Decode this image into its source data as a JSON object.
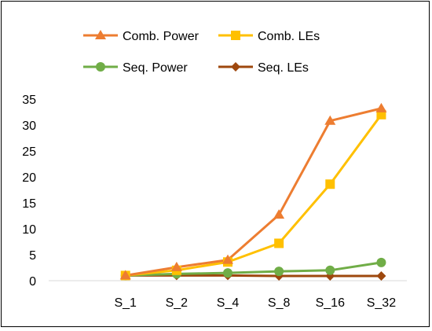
{
  "chart_data": {
    "type": "line",
    "categories": [
      "S_1",
      "S_2",
      "S_4",
      "S_8",
      "S_16",
      "S_32"
    ],
    "series": [
      {
        "name": "Comb. Power",
        "color": "#ED7D31",
        "marker": "triangle",
        "values": [
          1,
          2.6,
          4,
          12.7,
          30.8,
          33.2
        ]
      },
      {
        "name": "Comb. LEs",
        "color": "#FFC000",
        "marker": "square",
        "values": [
          1,
          2,
          3.6,
          7.2,
          18.6,
          32
        ]
      },
      {
        "name": "Seq. Power",
        "color": "#70AD47",
        "marker": "circle",
        "values": [
          1,
          1.3,
          1.5,
          1.8,
          2,
          3.5
        ]
      },
      {
        "name": "Seq. LEs",
        "color": "#9E480E",
        "marker": "diamond",
        "values": [
          1,
          1,
          1,
          0.9,
          0.9,
          0.9
        ]
      }
    ],
    "ylim": [
      0,
      35
    ],
    "yticks": [
      "0",
      "5",
      "10",
      "15",
      "20",
      "25",
      "30",
      "35"
    ],
    "grid": false,
    "legend_position": "top"
  }
}
